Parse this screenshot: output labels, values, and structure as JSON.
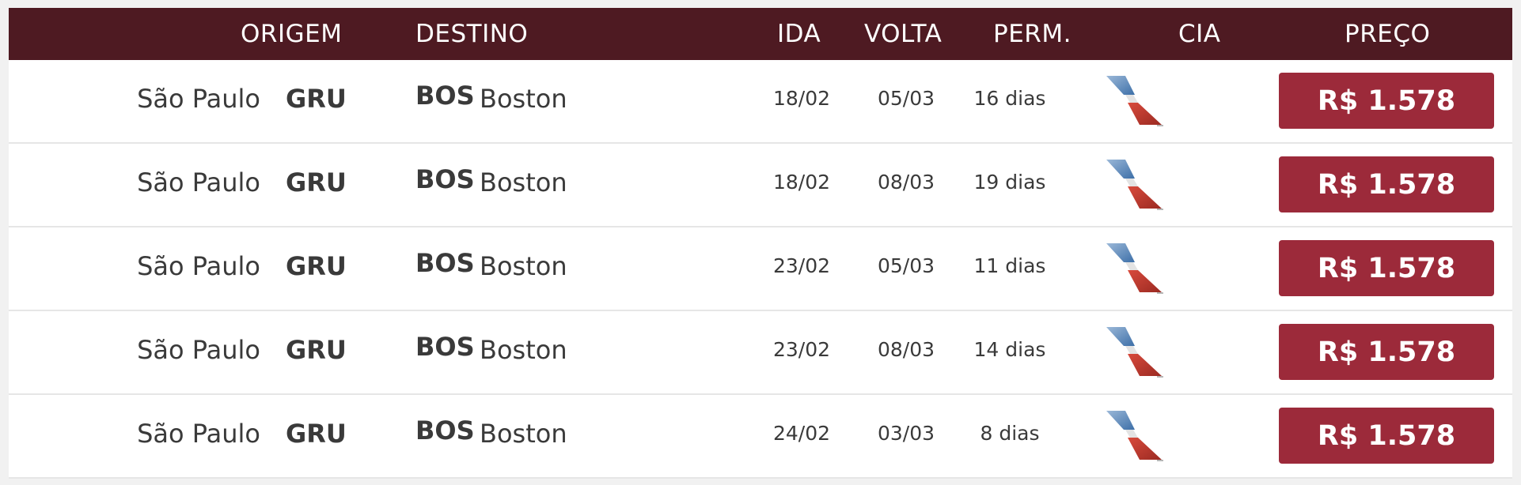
{
  "header": {
    "origin": "ORIGEM",
    "destination": "DESTINO",
    "depart": "IDA",
    "return": "VOLTA",
    "stay": "PERM.",
    "airline": "CIA",
    "price": "PREÇO"
  },
  "rows": [
    {
      "origin_city": "São Paulo",
      "origin_code": "GRU",
      "dest_code": "BOS",
      "dest_city": "Boston",
      "depart": "18/02",
      "return": "05/03",
      "stay": "16 dias",
      "airline_icon": "american-airlines-logo",
      "price": "R$ 1.578"
    },
    {
      "origin_city": "São Paulo",
      "origin_code": "GRU",
      "dest_code": "BOS",
      "dest_city": "Boston",
      "depart": "18/02",
      "return": "08/03",
      "stay": "19 dias",
      "airline_icon": "american-airlines-logo",
      "price": "R$ 1.578"
    },
    {
      "origin_city": "São Paulo",
      "origin_code": "GRU",
      "dest_code": "BOS",
      "dest_city": "Boston",
      "depart": "23/02",
      "return": "05/03",
      "stay": "11 dias",
      "airline_icon": "american-airlines-logo",
      "price": "R$ 1.578"
    },
    {
      "origin_city": "São Paulo",
      "origin_code": "GRU",
      "dest_code": "BOS",
      "dest_city": "Boston",
      "depart": "23/02",
      "return": "08/03",
      "stay": "14 dias",
      "airline_icon": "american-airlines-logo",
      "price": "R$ 1.578"
    },
    {
      "origin_city": "São Paulo",
      "origin_code": "GRU",
      "dest_code": "BOS",
      "dest_city": "Boston",
      "depart": "24/02",
      "return": "03/03",
      "stay": "8 dias",
      "airline_icon": "american-airlines-logo",
      "price": "R$ 1.578"
    }
  ],
  "colors": {
    "header_bg": "#4e1a22",
    "price_button": "#9c2a3a"
  }
}
